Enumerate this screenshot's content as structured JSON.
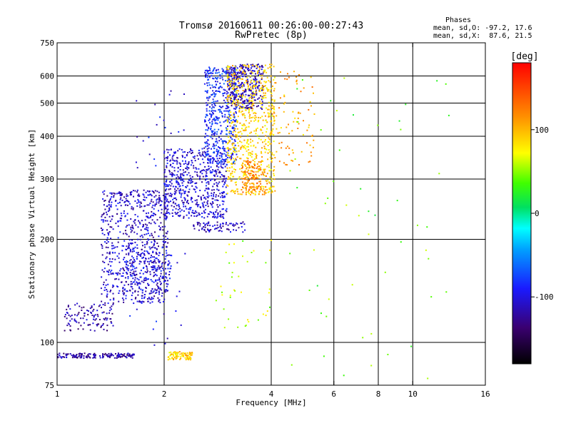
{
  "chart_data": {
    "type": "scatter",
    "title": "Tromsø 20160611 00:26:00-00:27:43",
    "subtitle": "RwPretec (8p)",
    "stats": {
      "heading": "Phases",
      "line1": "mean, sd,O: -97.2, 17.6",
      "line2": "mean, sd,X:  87.6, 21.5"
    },
    "xlabel": "Frequency [MHz]",
    "ylabel": "Stationary phase Virtual Height [km]",
    "xscale": "log",
    "yscale": "log",
    "xlim": [
      1,
      16
    ],
    "ylim": [
      75,
      750
    ],
    "x_ticks": [
      1,
      2,
      4,
      6,
      8,
      10,
      16
    ],
    "x_tick_labels": [
      "1",
      "2",
      "4",
      "6",
      "8",
      "10",
      "16"
    ],
    "x_grid": [
      2,
      4,
      6,
      8,
      10
    ],
    "y_ticks": [
      75,
      100,
      200,
      300,
      400,
      500,
      600,
      750
    ],
    "y_tick_labels": [
      "75",
      "100",
      "200",
      "300",
      "400",
      "500",
      "600",
      "750"
    ],
    "y_grid": [
      100,
      200,
      300,
      400,
      500,
      600
    ],
    "grid": true,
    "colorbar": {
      "label": "[deg]",
      "range": [
        -180,
        180
      ],
      "ticks": [
        100,
        0,
        -100
      ],
      "tick_labels": [
        "100",
        "0",
        "-100"
      ]
    },
    "clusters": [
      {
        "description": "E-layer O trace",
        "x_range": [
          1.0,
          1.65
        ],
        "y_range": [
          90,
          93
        ],
        "phase": -120,
        "n": 160
      },
      {
        "description": "Es X trace",
        "x_range": [
          2.05,
          2.4
        ],
        "y_range": [
          89,
          94
        ],
        "phase": 90,
        "n": 90
      },
      {
        "description": "low F trace",
        "x_range": [
          1.05,
          1.45
        ],
        "y_range": [
          108,
          130
        ],
        "phase": -118,
        "n": 110
      },
      {
        "description": "F1 O trace",
        "x_range": [
          1.33,
          2.05
        ],
        "y_range": [
          130,
          280
        ],
        "phase": -108,
        "n": 700
      },
      {
        "description": "F1 lower cusp",
        "x_range": [
          1.55,
          2.1
        ],
        "y_range": [
          140,
          190
        ],
        "phase": -100,
        "n": 150
      },
      {
        "description": "F2 O trace",
        "x_range": [
          2.0,
          3.0
        ],
        "y_range": [
          230,
          370
        ],
        "phase": -105,
        "n": 600
      },
      {
        "description": "F2 O upper",
        "x_range": [
          2.6,
          3.2
        ],
        "y_range": [
          330,
          640
        ],
        "phase": -85,
        "n": 450
      },
      {
        "description": "F2 O high",
        "x_range": [
          3.0,
          3.8
        ],
        "y_range": [
          480,
          650
        ],
        "phase": -115,
        "n": 350
      },
      {
        "description": "F2 X trace",
        "x_range": [
          3.0,
          4.1
        ],
        "y_range": [
          270,
          650
        ],
        "phase": 90,
        "n": 650
      },
      {
        "description": "F2 X orange",
        "x_range": [
          3.3,
          3.9
        ],
        "y_range": [
          270,
          340
        ],
        "phase": 120,
        "n": 140
      },
      {
        "description": "F2 extension",
        "x_range": [
          4.0,
          5.3
        ],
        "y_range": [
          330,
          620
        ],
        "phase": 105,
        "n": 90
      },
      {
        "description": "middle band",
        "x_range": [
          2.4,
          3.4
        ],
        "y_range": [
          210,
          225
        ],
        "phase": -110,
        "n": 80
      },
      {
        "description": "scattered mid",
        "x_range": [
          2.8,
          4.0
        ],
        "y_range": [
          110,
          200
        ],
        "phase": 60,
        "n": 40
      },
      {
        "description": "sparse high-freq echoes",
        "x_range": [
          4.5,
          13
        ],
        "y_range": [
          78,
          620
        ],
        "phase": 40,
        "n": 55
      },
      {
        "description": "sparse low echoes",
        "x_range": [
          1.6,
          2.3
        ],
        "y_range": [
          95,
          600
        ],
        "phase": -100,
        "n": 60
      }
    ]
  }
}
